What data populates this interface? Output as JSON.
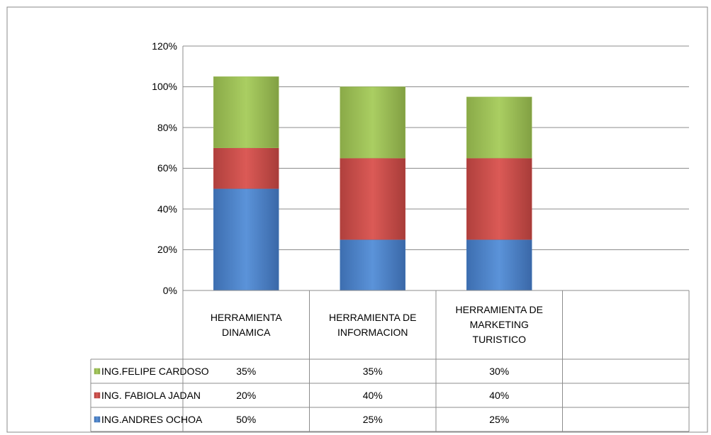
{
  "chart_data": {
    "type": "stacked_bar",
    "categories": [
      "HERRAMIENTA DINAMICA",
      "HERRAMIENTA DE INFORMACION",
      "HERRAMIENTA DE MARKETING TURISTICO",
      null
    ],
    "series": [
      {
        "name": "ING.ANDRES OCHOA",
        "color": "#4a7ebb",
        "values": [
          50,
          25,
          25,
          null
        ],
        "value_labels": [
          "50%",
          "25%",
          "25%",
          null
        ]
      },
      {
        "name": "ING. FABIOLA JADAN",
        "color": "#c0504d",
        "values": [
          20,
          40,
          40,
          null
        ],
        "value_labels": [
          "20%",
          "40%",
          "40%",
          null
        ]
      },
      {
        "name": "ING.FELIPE CARDOSO",
        "color": "#9bbb59",
        "values": [
          35,
          35,
          30,
          null
        ],
        "value_labels": [
          "35%",
          "35%",
          "30%",
          null
        ]
      }
    ],
    "ylim": [
      0,
      120
    ],
    "yticks": [
      {
        "value": 0,
        "label": "0%"
      },
      {
        "value": 20,
        "label": "20%"
      },
      {
        "value": 40,
        "label": "40%"
      },
      {
        "value": 60,
        "label": "60%"
      },
      {
        "value": 80,
        "label": "80%"
      },
      {
        "value": 100,
        "label": "100%"
      },
      {
        "value": 120,
        "label": "120%"
      }
    ],
    "grid": true,
    "legend": "table"
  }
}
